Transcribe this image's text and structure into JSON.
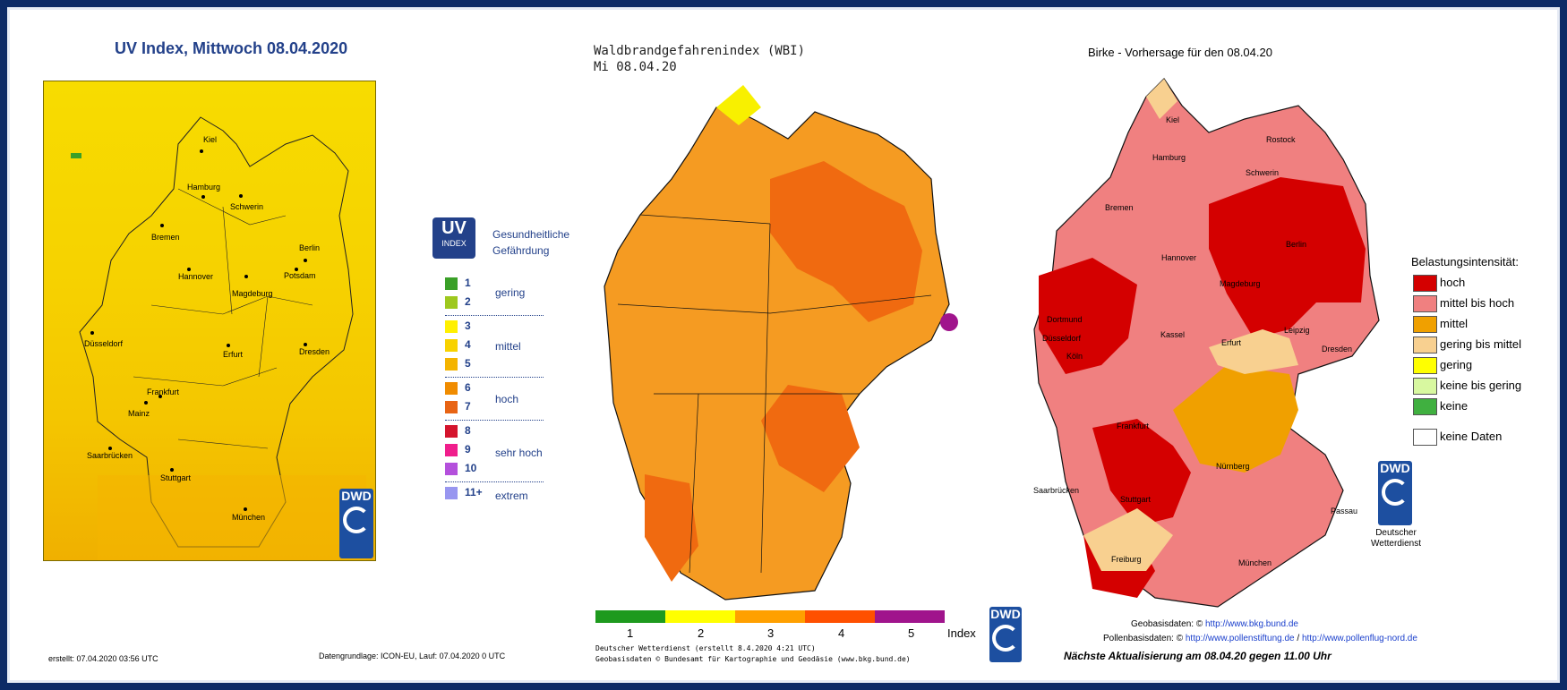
{
  "uv": {
    "title": "UV Index, Mittwoch 08.04.2020",
    "badge_big": "UV",
    "badge_small": "INDEX",
    "legend_title": "Gesundheitliche Gefährdung",
    "levels": [
      {
        "num": "1",
        "color": "#3aa028"
      },
      {
        "num": "2",
        "color": "#9ec81e"
      },
      {
        "num": "3",
        "color": "#fff000"
      },
      {
        "num": "4",
        "color": "#f8d200"
      },
      {
        "num": "5",
        "color": "#f4b400"
      },
      {
        "num": "6",
        "color": "#f08c00"
      },
      {
        "num": "7",
        "color": "#e86414"
      },
      {
        "num": "8",
        "color": "#d4142d"
      },
      {
        "num": "9",
        "color": "#f01e8c"
      },
      {
        "num": "10",
        "color": "#b450dc"
      },
      {
        "num": "11+",
        "color": "#9896f0"
      }
    ],
    "categories": [
      "gering",
      "mittel",
      "hoch",
      "sehr hoch",
      "extrem"
    ],
    "cities": [
      "Kiel",
      "Hamburg",
      "Schwerin",
      "Bremen",
      "Berlin",
      "Potsdam",
      "Hannover",
      "Magdeburg",
      "Düsseldorf",
      "Erfurt",
      "Dresden",
      "Frankfurt",
      "Mainz",
      "Saarbrücken",
      "Stuttgart",
      "München"
    ],
    "created": "erstellt: 07.04.2020 03:56 UTC",
    "basis": "Datengrundlage: ICON-EU, Lauf: 07.04.2020 0 UTC"
  },
  "dwd": {
    "logo": "DWD",
    "name_line1": "Deutscher",
    "name_line2": "Wetterdienst"
  },
  "wbi": {
    "title": "Waldbrandgefahrenindex (WBI)",
    "date": "Mi 08.04.20",
    "scale_colors": [
      "#1e9a1e",
      "#ffff00",
      "#ffa000",
      "#ff5000",
      "#a0148c"
    ],
    "scale_labels": [
      "1",
      "2",
      "3",
      "4",
      "5"
    ],
    "index_label": "Index",
    "foot1": "Deutscher Wetterdienst (erstellt 8.4.2020 4:21 UTC)",
    "foot2": "Geobasisdaten © Bundesamt für Kartographie und Geodäsie (www.bkg.bund.de)"
  },
  "birke": {
    "title": "Birke - Vorhersage für den 08.04.20",
    "legend_title": "Belastungsintensität:",
    "legend": [
      {
        "label": "hoch",
        "color": "#d40000"
      },
      {
        "label": "mittel bis hoch",
        "color": "#f08080"
      },
      {
        "label": "mittel",
        "color": "#f0a000"
      },
      {
        "label": "gering bis mittel",
        "color": "#f8d090"
      },
      {
        "label": "gering",
        "color": "#ffff00"
      },
      {
        "label": "keine bis gering",
        "color": "#d8f8a0"
      },
      {
        "label": "keine",
        "color": "#40b040"
      },
      {
        "label": "keine Daten",
        "color": "#ffffff"
      }
    ],
    "cities": [
      "Kiel",
      "Rostock",
      "Hamburg",
      "Schwerin",
      "Bremen",
      "Berlin",
      "Hannover",
      "Magdeburg",
      "Dortmund",
      "Düsseldorf",
      "Köln",
      "Kassel",
      "Leipzig",
      "Erfurt",
      "Dresden",
      "Frankfurt",
      "Nürnberg",
      "Saarbrücken",
      "Stuttgart",
      "Passau",
      "Freiburg",
      "München"
    ],
    "geobasis_label": "Geobasisdaten: ©",
    "geobasis_link": "http://www.bkg.bund.de",
    "pollen_label": "Pollenbasisdaten: ©",
    "pollen_link1": "http://www.pollenstiftung.de",
    "pollen_sep": "/",
    "pollen_link2": "http://www.pollenflug-nord.de",
    "next_update": "Nächste Aktualisierung am 08.04.20 gegen 11.00 Uhr"
  }
}
